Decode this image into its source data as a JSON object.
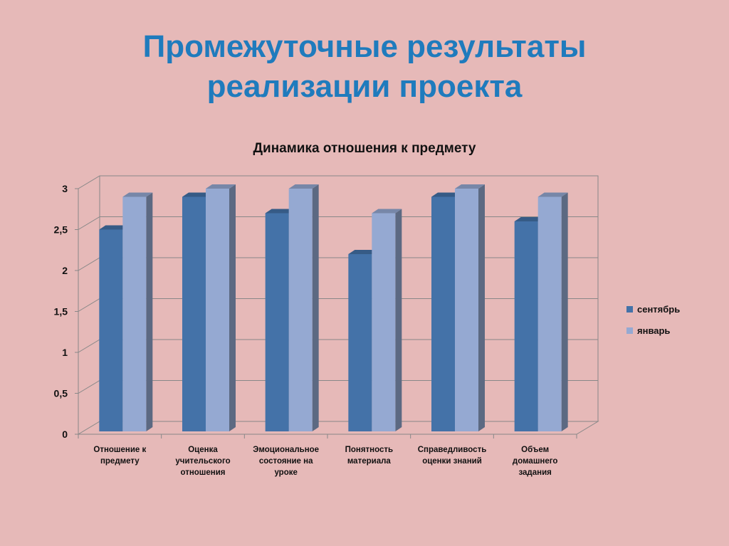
{
  "slide": {
    "title_line1": "Промежуточные результаты",
    "title_line2": "реализации проекта"
  },
  "chart_data": {
    "type": "bar",
    "title": "Динамика отношения к предмету",
    "categories": [
      [
        "Отношение к",
        "предмету"
      ],
      [
        "Оценка",
        "учительского",
        "отношения"
      ],
      [
        "Эмоциональное",
        "состояние на",
        "уроке"
      ],
      [
        "Понятность",
        "материала"
      ],
      [
        "Справедливость",
        "оценки знаний"
      ],
      [
        "Объем",
        "домашнего",
        "задания"
      ]
    ],
    "series": [
      {
        "name": "сентябрь",
        "values": [
          2.5,
          2.9,
          2.7,
          2.2,
          2.9,
          2.6
        ],
        "color": "#4472a8"
      },
      {
        "name": "январь",
        "values": [
          2.9,
          3.0,
          3.0,
          2.7,
          3.0,
          2.9
        ],
        "color": "#95a9d2"
      }
    ],
    "ylim": [
      0,
      3
    ],
    "yticks": [
      "0",
      "0,5",
      "1",
      "1,5",
      "2",
      "2,5",
      "3"
    ],
    "grid": true,
    "legend_position": "right"
  }
}
